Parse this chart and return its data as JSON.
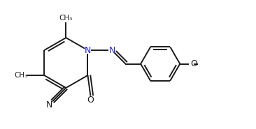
{
  "background_color": "#ffffff",
  "line_color": "#1a1a1a",
  "N_color": "#2020cc",
  "O_color": "#1a1a1a",
  "lw": 1.4,
  "fig_width": 3.66,
  "fig_height": 1.85,
  "dpi": 100,
  "xlim": [
    0,
    3.66
  ],
  "ylim": [
    0,
    1.85
  ]
}
